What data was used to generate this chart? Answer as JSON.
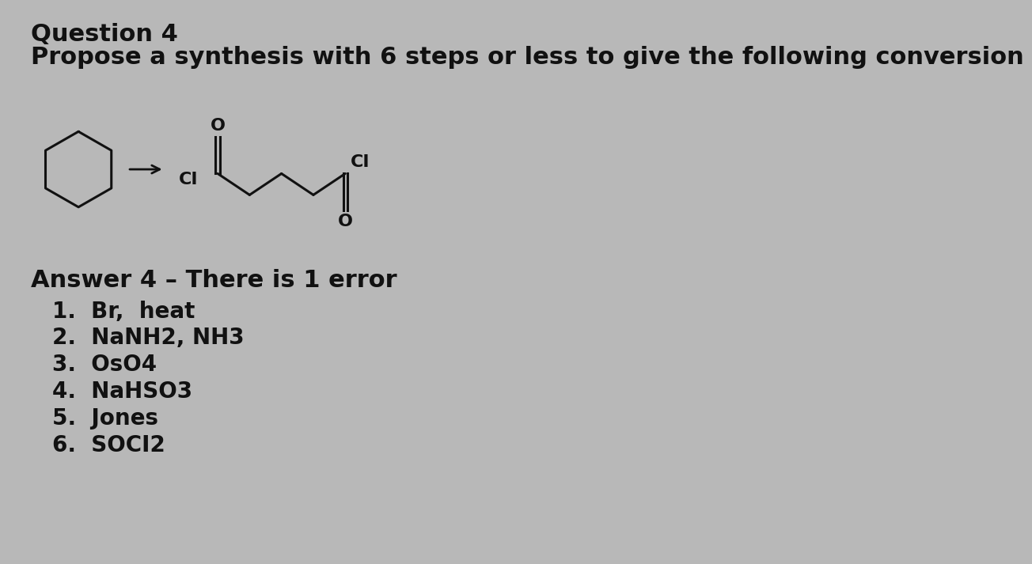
{
  "title_line1": "Question 4",
  "title_line2": "Propose a synthesis with 6 steps or less to give the following conversion",
  "answer_header": "Answer 4 – There is 1 error",
  "steps": [
    "1.  Br,  heat",
    "2.  NaNH2, NH3",
    "3.  OsO4",
    "4.  NaHSO3",
    "5.  Jones",
    "6.  SOCI2"
  ],
  "background_color": "#b8b8b8",
  "text_color": "#111111",
  "font_size_title1": 22,
  "font_size_title2": 22,
  "font_size_answer": 22,
  "font_size_steps": 20,
  "font_size_mol": 16
}
